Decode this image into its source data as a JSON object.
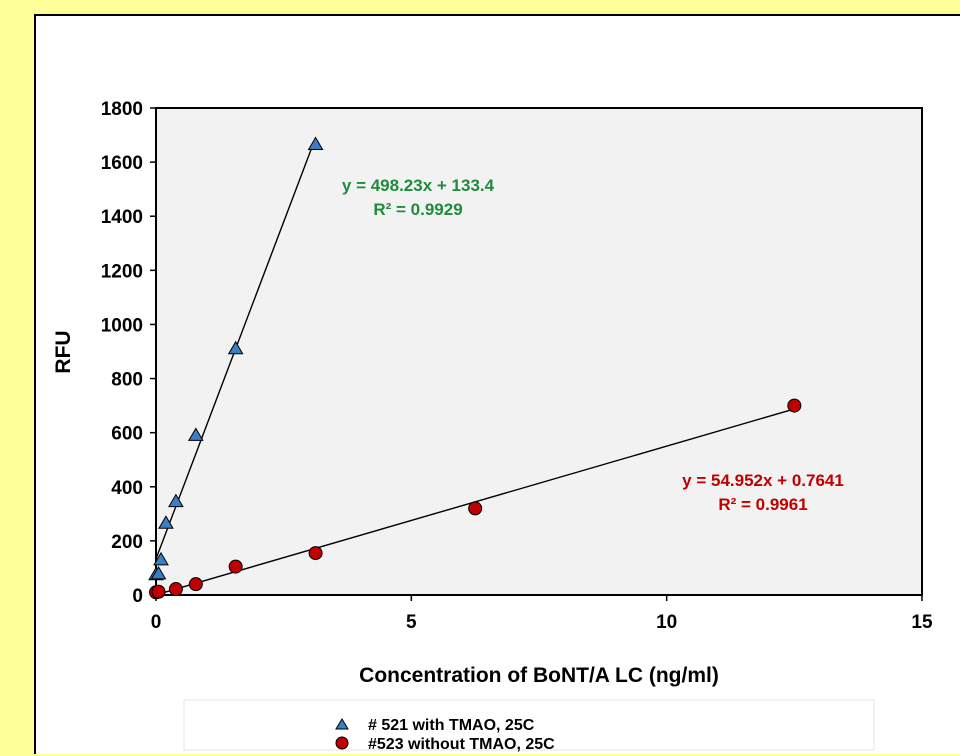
{
  "chart_data": {
    "type": "scatter",
    "title": "",
    "xlabel": "Concentration of BoNT/A LC (ng/ml)",
    "ylabel": "RFU",
    "xlim": [
      0,
      15
    ],
    "ylim": [
      0,
      1800
    ],
    "xticks": [
      "0",
      "5",
      "10",
      "15"
    ],
    "yticks": [
      "0",
      "200",
      "400",
      "600",
      "800",
      "1000",
      "1200",
      "1400",
      "1600",
      "1800"
    ],
    "grid": false,
    "legend_position": "bottom",
    "series": [
      {
        "name": "# 521 with TMAO, 25C",
        "marker": "triangle",
        "color": "#3A7FC4",
        "x": [
          0,
          0.049,
          0.098,
          0.195,
          0.39,
          0.78,
          1.56,
          3.125
        ],
        "y": [
          75,
          78,
          130,
          265,
          345,
          590,
          910,
          1665
        ],
        "trendline": {
          "slope": 498.23,
          "intercept": 133.4,
          "x_range": [
            0,
            3.125
          ]
        },
        "equation": "y = 498.23x + 133.4",
        "r2": "R² = 0.9929",
        "label_color": "#1E8C3A"
      },
      {
        "name": "#523 without TMAO, 25C",
        "marker": "circle",
        "color": "#C00000",
        "x": [
          0,
          0.049,
          0.39,
          0.78,
          1.56,
          3.125,
          6.25,
          12.5
        ],
        "y": [
          10,
          12,
          22,
          40,
          105,
          155,
          320,
          700
        ],
        "trendline": {
          "slope": 54.952,
          "intercept": 0.7641,
          "x_range": [
            0,
            12.5
          ]
        },
        "equation": "y = 54.952x + 0.7641",
        "r2": "R² = 0.9961",
        "label_color": "#C00000"
      }
    ]
  }
}
